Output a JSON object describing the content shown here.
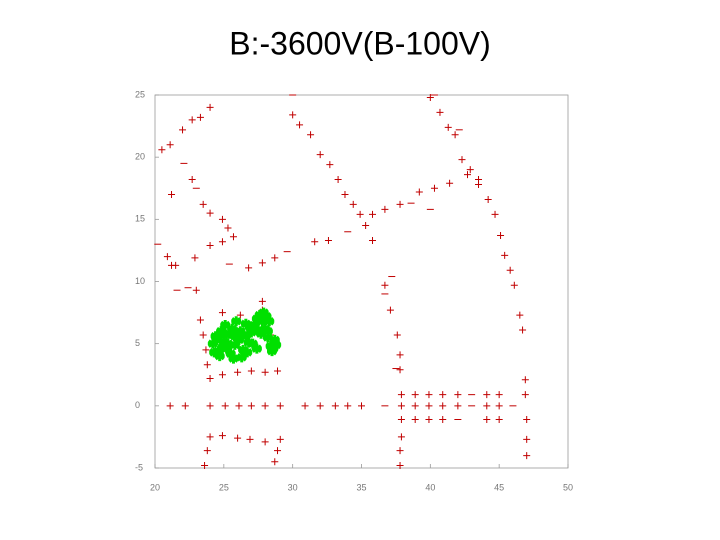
{
  "chart_data": {
    "type": "scatter",
    "title": "B:-3600V(B-100V)",
    "xlim": [
      20,
      50
    ],
    "xticks": [
      20,
      25,
      30,
      35,
      40,
      45,
      50
    ],
    "ylim": [
      -5,
      25
    ],
    "yticks": [
      -5,
      0,
      5,
      10,
      15,
      20,
      25
    ],
    "series": [
      {
        "color": "#c00000",
        "marker": "+",
        "x": [
          21.1,
          22.2,
          24.0,
          25.1,
          26.1,
          27.0,
          28.0,
          29.1,
          30.9,
          32.0,
          33.1,
          34.0,
          35.0,
          37.9,
          38.9,
          39.9,
          40.9,
          42.0,
          44.1,
          45.0
        ],
        "y": [
          0,
          0,
          0,
          0,
          0,
          0,
          0,
          0,
          0,
          0,
          0,
          0,
          0,
          0,
          0,
          0,
          0,
          0,
          0,
          0
        ]
      },
      {
        "color": "#c00000",
        "marker": "+",
        "x": [
          37.9,
          38.9,
          39.9,
          40.9,
          42.0,
          44.1,
          45.0,
          46.9
        ],
        "y": [
          0.9,
          0.9,
          0.9,
          0.9,
          0.9,
          0.9,
          0.9,
          0.9
        ]
      },
      {
        "color": "#c00000",
        "marker": "+",
        "x": [
          38.9,
          39.9,
          40.9,
          44.1,
          45.0
        ],
        "y": [
          -1.1,
          -1.1,
          -1.1,
          -1.1,
          -1.1
        ]
      },
      {
        "color": "#c00000",
        "marker": "+",
        "x": [
          21.5,
          22.9,
          24.0,
          24.9,
          26.8,
          27.8,
          28.7,
          31.6,
          32.6,
          35.8,
          36.7,
          37.8,
          39.2,
          40.3,
          41.4,
          42.7,
          43.5
        ],
        "y": [
          11.3,
          11.9,
          12.9,
          13.2,
          11.1,
          11.5,
          11.9,
          13.2,
          13.3,
          15.4,
          15.8,
          16.2,
          17.2,
          17.5,
          17.9,
          18.6,
          18.2
        ]
      },
      {
        "color": "#c00000",
        "marker": "+",
        "x": [
          40.0,
          40.7,
          41.3,
          41.8,
          42.3,
          42.9,
          43.5,
          44.2,
          44.7,
          45.1,
          45.4,
          45.8,
          46.1,
          46.5,
          46.7,
          46.9,
          47.0,
          47.0,
          47.0
        ],
        "y": [
          24.8,
          23.6,
          22.4,
          21.8,
          19.8,
          19.0,
          17.8,
          16.6,
          15.4,
          13.7,
          12.1,
          10.9,
          9.7,
          7.3,
          6.1,
          2.1,
          -1.1,
          -2.7,
          -4.0
        ]
      },
      {
        "color": "#c00000",
        "marker": "+",
        "x": [
          30.0,
          30.5,
          31.3,
          32.0,
          32.7,
          33.3,
          33.8,
          34.4,
          34.9,
          35.3,
          35.8,
          36.7,
          37.1,
          37.6,
          37.8,
          37.8,
          37.9,
          37.9,
          37.8,
          37.8
        ],
        "y": [
          23.4,
          22.6,
          21.8,
          20.2,
          19.4,
          18.2,
          17.0,
          16.2,
          15.4,
          14.5,
          13.3,
          9.7,
          7.7,
          5.7,
          4.1,
          2.9,
          -1.1,
          -2.5,
          -3.6,
          -4.8
        ]
      },
      {
        "color": "#c00000",
        "marker": "+",
        "x": [
          20.5,
          21.1,
          22.0,
          22.7,
          23.3,
          24.0,
          21.2,
          22.7,
          23.5,
          24.0,
          24.9,
          25.3,
          25.7,
          20.9,
          21.2
        ],
        "y": [
          20.6,
          21.0,
          22.2,
          23.0,
          23.2,
          24.0,
          17.0,
          18.2,
          16.2,
          15.5,
          15.0,
          14.3,
          13.6,
          12.0,
          11.3
        ]
      },
      {
        "color": "#c00000",
        "marker": "+",
        "x": [
          23.0,
          24.9,
          26.2,
          27.8,
          27.8,
          23.3,
          23.5,
          23.7,
          23.8,
          24.0,
          24.9,
          26.0,
          27.0,
          28.0,
          28.9,
          28.4,
          28.7
        ],
        "y": [
          9.3,
          7.5,
          7.3,
          8.4,
          7.7,
          6.9,
          5.7,
          4.5,
          3.3,
          2.2,
          2.5,
          2.7,
          2.8,
          2.7,
          2.8,
          5.7,
          4.9
        ]
      },
      {
        "color": "#c00000",
        "marker": "+",
        "x": [
          24.0,
          23.8,
          23.6,
          24.9,
          26.0,
          26.9,
          28.0,
          29.1,
          28.9,
          28.7
        ],
        "y": [
          -2.5,
          -3.6,
          -4.8,
          -2.4,
          -2.6,
          -2.7,
          -2.9,
          -2.7,
          -3.6,
          -4.5
        ]
      },
      {
        "color": "#c00000",
        "marker": "-",
        "x": [
          36.7,
          43.0,
          46.0,
          43.0,
          42.0,
          29.6,
          34.0,
          38.6,
          40.0,
          22.4,
          21.6,
          25.4,
          23.0,
          22.1,
          42.1,
          30.0,
          40.3,
          37.2,
          36.7,
          37.5,
          20.2
        ],
        "y": [
          0,
          0,
          0,
          0.9,
          -1.1,
          12.4,
          14.0,
          16.3,
          15.8,
          9.5,
          9.3,
          11.4,
          17.5,
          19.5,
          22.2,
          25.0,
          25.0,
          10.4,
          9.0,
          3.0,
          13.0
        ]
      },
      {
        "color": "#00e000",
        "marker": "dot",
        "x": [
          24.2,
          24.4,
          24.6,
          24.8,
          25.0,
          25.2,
          25.4,
          25.6,
          25.8,
          26.0,
          26.2,
          26.4,
          26.6,
          26.8,
          27.0,
          27.2,
          27.4,
          27.6,
          27.8,
          28.0,
          28.2,
          28.4,
          28.6,
          28.8,
          24.3,
          24.7,
          25.1,
          25.5,
          25.9,
          26.3,
          26.7,
          27.1,
          27.5,
          27.9,
          28.3,
          28.7,
          24.5,
          25.3,
          26.1,
          26.9,
          27.7,
          28.1,
          28.5,
          25.0,
          25.8,
          26.6,
          27.4,
          28.2,
          24.9,
          25.7
        ],
        "y": [
          5.0,
          5.6,
          4.4,
          6.0,
          5.2,
          4.6,
          5.8,
          6.2,
          4.9,
          5.4,
          6.0,
          4.5,
          5.6,
          5.1,
          5.9,
          6.5,
          7.0,
          7.3,
          6.8,
          6.2,
          5.5,
          4.8,
          4.6,
          4.9,
          4.3,
          4.0,
          6.5,
          4.2,
          6.8,
          3.9,
          4.3,
          5.0,
          6.1,
          7.5,
          6.8,
          5.3,
          5.3,
          5.0,
          5.3,
          6.3,
          5.8,
          7.2,
          4.4,
          5.7,
          5.6,
          6.6,
          4.6,
          6.0,
          4.7,
          3.8
        ]
      }
    ]
  }
}
